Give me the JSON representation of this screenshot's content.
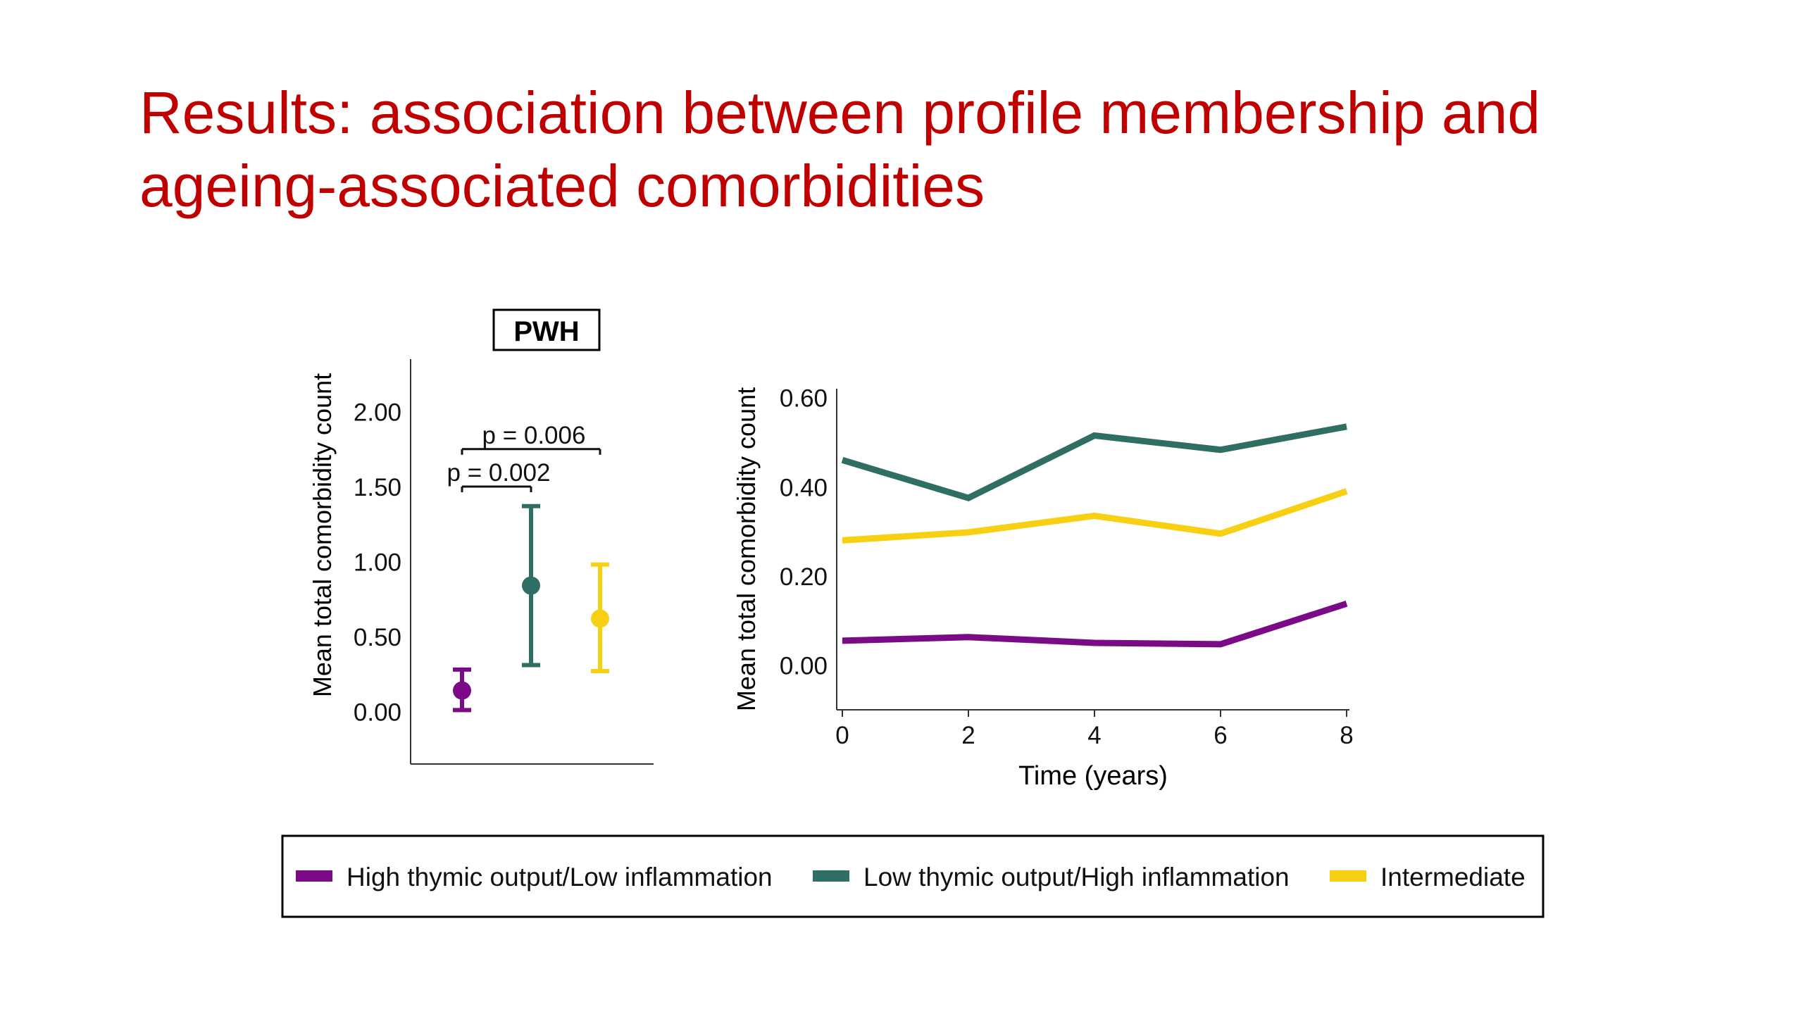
{
  "slide": {
    "title_line1": "Results: association between profile membership and",
    "title_line2": "ageing-associated comorbidities"
  },
  "colors": {
    "title": "#C00000",
    "high_thymic": "#7A0A86",
    "low_thymic": "#2F6E62",
    "intermediate": "#F7CF13"
  },
  "chart_data": [
    {
      "type": "scatter",
      "title": "PWH",
      "ylabel": "Mean total comorbidity count",
      "ylim": [
        -0.35,
        2.35
      ],
      "yticks": [
        "0.00",
        "0.50",
        "1.00",
        "1.50",
        "2.00"
      ],
      "ytick_values": [
        0,
        0.5,
        1.0,
        1.5,
        2.0
      ],
      "series": [
        {
          "name": "High thymic output/Low inflammation",
          "mean": 0.14,
          "lower": 0.01,
          "upper": 0.28
        },
        {
          "name": "Low thymic output/High inflammation",
          "mean": 0.84,
          "lower": 0.31,
          "upper": 1.37
        },
        {
          "name": "Intermediate",
          "mean": 0.62,
          "lower": 0.27,
          "upper": 0.98
        }
      ],
      "annotations": [
        {
          "text": "p = 0.006",
          "from": 0,
          "to": 2,
          "y": 1.75
        },
        {
          "text": "p = 0.002",
          "from": 0,
          "to": 1,
          "y": 1.5
        }
      ]
    },
    {
      "type": "line",
      "xlabel": "Time (years)",
      "ylabel": "Mean total comorbidity count",
      "x": [
        0,
        2,
        4,
        6,
        8
      ],
      "xticks": [
        "0",
        "2",
        "4",
        "6",
        "8"
      ],
      "xlim": [
        0,
        8
      ],
      "ylim": [
        -0.1,
        0.62
      ],
      "yticks": [
        "0.00",
        "0.20",
        "0.40",
        "0.60"
      ],
      "ytick_values": [
        0,
        0.2,
        0.4,
        0.6
      ],
      "series": [
        {
          "name": "High thymic output/Low inflammation",
          "values": [
            0.055,
            0.063,
            0.05,
            0.047,
            0.138
          ]
        },
        {
          "name": "Low thymic output/High inflammation",
          "values": [
            0.46,
            0.375,
            0.515,
            0.483,
            0.535
          ]
        },
        {
          "name": "Intermediate",
          "values": [
            0.28,
            0.298,
            0.335,
            0.295,
            0.39
          ]
        }
      ]
    }
  ],
  "legend": {
    "items": [
      {
        "label": "High thymic output/Low inflammation",
        "color": "#7A0A86"
      },
      {
        "label": "Low thymic output/High inflammation",
        "color": "#2F6E62"
      },
      {
        "label": "Intermediate",
        "color": "#F7CF13"
      }
    ]
  }
}
